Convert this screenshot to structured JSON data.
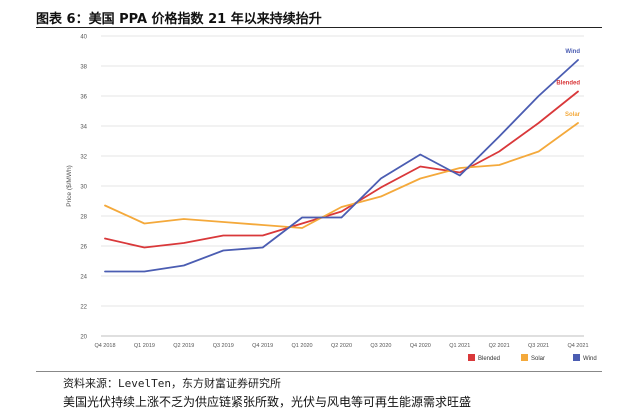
{
  "figure": {
    "caption": "图表 6：美国 PPA 价格指数 21 年以来持续抬升",
    "source": "资料来源：LevelTen，东方财富证券研究所",
    "body_text": "美国光伏持续上涨不乏为供应链紧张所致，光伏与风电等可再生能源需求旺盛"
  },
  "chart_data": {
    "type": "line",
    "ylabel": "Price ($/MWh)",
    "xlabel": "",
    "categories": [
      "Q4 2018",
      "Q1 2019",
      "Q2 2019",
      "Q3 2019",
      "Q4 2019",
      "Q1 2020",
      "Q2 2020",
      "Q3 2020",
      "Q4 2020",
      "Q1 2021",
      "Q2 2021",
      "Q3 2021",
      "Q4 2021"
    ],
    "ylim": [
      20,
      40
    ],
    "yticks": [
      20,
      22,
      24,
      26,
      28,
      30,
      32,
      34,
      36,
      38,
      40
    ],
    "grid": true,
    "legend_position": "bottom-right",
    "series": [
      {
        "name": "Blended",
        "color": "#d9383a",
        "values": [
          26.5,
          25.9,
          26.2,
          26.7,
          26.7,
          27.5,
          28.3,
          29.9,
          31.3,
          30.9,
          32.3,
          34.2,
          36.3
        ]
      },
      {
        "name": "Solar",
        "color": "#f4a93b",
        "values": [
          28.7,
          27.5,
          27.8,
          27.6,
          27.4,
          27.2,
          28.6,
          29.3,
          30.5,
          31.2,
          31.4,
          32.3,
          34.2
        ]
      },
      {
        "name": "Wind",
        "color": "#4b5db2",
        "values": [
          24.3,
          24.3,
          24.7,
          25.7,
          25.9,
          27.9,
          27.9,
          30.5,
          32.1,
          30.7,
          33.3,
          36.0,
          38.4
        ]
      }
    ]
  }
}
